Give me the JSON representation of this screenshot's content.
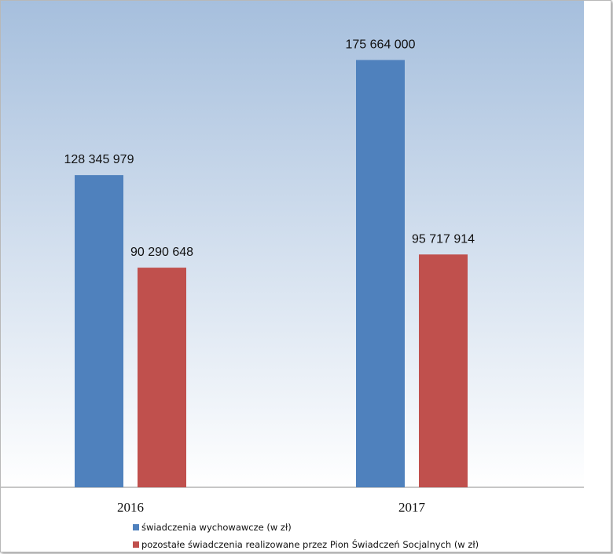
{
  "chart_data": {
    "type": "bar",
    "categories": [
      "2016",
      "2017"
    ],
    "series": [
      {
        "name": "świadczenia wychowawcze (w zł)",
        "color": "#4f81bd",
        "values": [
          128345979,
          175664000
        ],
        "labels": [
          "128 345 979",
          "175 664 000"
        ]
      },
      {
        "name": "pozostałe świadczenia realizowane przez Pion Świadczeń Socjalnych (w zł)",
        "color": "#c0504d",
        "values": [
          90290648,
          95717914
        ],
        "labels": [
          "90 290 648",
          "95 717 914"
        ]
      }
    ],
    "ylim": [
      0,
      200000000
    ],
    "grid": false,
    "legend": "bottom",
    "background_gradient": [
      "#a6bfdd",
      "#ffffff"
    ]
  }
}
